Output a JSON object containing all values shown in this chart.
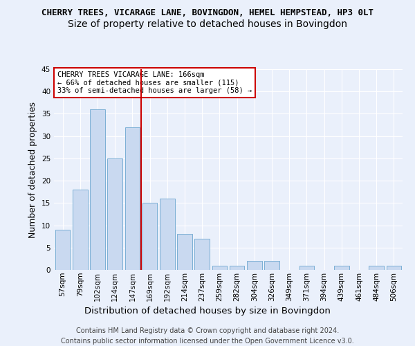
{
  "title": "CHERRY TREES, VICARAGE LANE, BOVINGDON, HEMEL HEMPSTEAD, HP3 0LT",
  "subtitle": "Size of property relative to detached houses in Bovingdon",
  "xlabel": "Distribution of detached houses by size in Bovingdon",
  "ylabel": "Number of detached properties",
  "categories": [
    "57sqm",
    "79sqm",
    "102sqm",
    "124sqm",
    "147sqm",
    "169sqm",
    "192sqm",
    "214sqm",
    "237sqm",
    "259sqm",
    "282sqm",
    "304sqm",
    "326sqm",
    "349sqm",
    "371sqm",
    "394sqm",
    "439sqm",
    "461sqm",
    "484sqm",
    "506sqm"
  ],
  "values": [
    9,
    18,
    36,
    25,
    32,
    15,
    16,
    8,
    7,
    1,
    1,
    2,
    2,
    0,
    1,
    0,
    1,
    0,
    1,
    1
  ],
  "bar_color": "#c9d9f0",
  "bar_edge_color": "#7bafd4",
  "vline_color": "#cc0000",
  "annotation_box_color": "#ffffff",
  "annotation_border_color": "#cc0000",
  "annotation_text_line1": "CHERRY TREES VICARAGE LANE: 166sqm",
  "annotation_text_line2": "← 66% of detached houses are smaller (115)",
  "annotation_text_line3": "33% of semi-detached houses are larger (58) →",
  "ylim": [
    0,
    45
  ],
  "yticks": [
    0,
    5,
    10,
    15,
    20,
    25,
    30,
    35,
    40,
    45
  ],
  "footer_line1": "Contains HM Land Registry data © Crown copyright and database right 2024.",
  "footer_line2": "Contains public sector information licensed under the Open Government Licence v3.0.",
  "background_color": "#eaf0fb",
  "plot_background_color": "#eaf0fb",
  "title_fontsize": 9,
  "subtitle_fontsize": 10,
  "axis_label_fontsize": 9,
  "tick_fontsize": 7.5,
  "annotation_fontsize": 7.5,
  "footer_fontsize": 7
}
